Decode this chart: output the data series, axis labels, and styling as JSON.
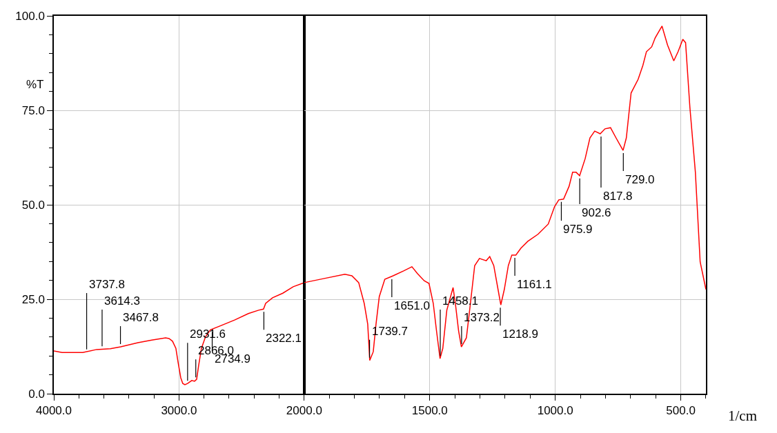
{
  "chart_data": [
    {
      "type": "line",
      "ylabel": "%T",
      "xlim": [
        4000,
        2000
      ],
      "xticks": [
        {
          "value": 4000,
          "label": "4000.0"
        },
        {
          "value": 3000,
          "label": "3000.0"
        },
        {
          "value": 2000,
          "label": "2000.0"
        }
      ],
      "ylim": [
        0,
        100
      ],
      "yticks": [
        {
          "value": 0,
          "label": "0.0"
        },
        {
          "value": 25,
          "label": "25.0"
        },
        {
          "value": 50,
          "label": "50.0"
        },
        {
          "value": 75,
          "label": "75.0"
        },
        {
          "value": 100,
          "label": "100.0"
        }
      ],
      "grid": true,
      "marker": "none",
      "series": [
        {
          "color": "#ff0000",
          "x": [
            4000,
            3934,
            3769,
            3658,
            3548,
            3466,
            3328,
            3218,
            3107,
            3080,
            3052,
            3025,
            3008,
            2986,
            2970,
            2953,
            2931,
            2898,
            2876,
            2859,
            2843,
            2821,
            2788,
            2749,
            2667,
            2556,
            2446,
            2364,
            2325,
            2308,
            2253,
            2171,
            2088,
            2000
          ],
          "values": [
            11.3,
            10.9,
            10.9,
            11.7,
            11.9,
            12.4,
            13.5,
            14.2,
            14.8,
            14.6,
            13.9,
            12.0,
            8.4,
            4.2,
            2.7,
            2.4,
            2.7,
            3.5,
            3.3,
            3.8,
            7.5,
            12.0,
            15.1,
            16.9,
            18.0,
            19.5,
            21.2,
            22.1,
            22.4,
            23.9,
            25.4,
            26.6,
            28.3,
            29.4
          ]
        }
      ],
      "annotations": [
        {
          "text": "3737.8",
          "x": 3737.8,
          "y": 11.0
        },
        {
          "text": "3614.3",
          "x": 3614.3,
          "y": 11.8
        },
        {
          "text": "3467.8",
          "x": 3467.8,
          "y": 12.4
        },
        {
          "text": "2931.6",
          "x": 2931.6,
          "y": 2.7
        },
        {
          "text": "2866.0",
          "x": 2866.0,
          "y": 3.6
        },
        {
          "text": "2734.9",
          "x": 2734.9,
          "y": 17.0
        },
        {
          "text": "2322.1",
          "x": 2322.1,
          "y": 22.4
        }
      ]
    },
    {
      "type": "line",
      "xlabel": "1/cm",
      "xlim": [
        2000,
        400
      ],
      "xticks": [
        {
          "value": 2000,
          "label": null
        },
        {
          "value": 1500,
          "label": "1500.0"
        },
        {
          "value": 1000,
          "label": "1000.0"
        },
        {
          "value": 500,
          "label": "500.0"
        }
      ],
      "ylim": [
        0,
        100
      ],
      "yticks": [
        0,
        25,
        50,
        75,
        100
      ],
      "tick_labels": "x",
      "grid": true,
      "marker": "none",
      "series": [
        {
          "color": "#ff0000",
          "x": [
            2000,
            1920,
            1838,
            1810,
            1783,
            1761,
            1747,
            1739,
            1725,
            1714,
            1701,
            1679,
            1646,
            1604,
            1571,
            1549,
            1522,
            1503,
            1486,
            1473,
            1459,
            1448,
            1432,
            1407,
            1398,
            1385,
            1374,
            1354,
            1338,
            1321,
            1302,
            1275,
            1261,
            1245,
            1228,
            1217,
            1203,
            1187,
            1173,
            1157,
            1137,
            1110,
            1069,
            1028,
            1003,
            986,
            967,
            945,
            931,
            917,
            903,
            881,
            862,
            843,
            821,
            802,
            780,
            758,
            730,
            717,
            698,
            670,
            651,
            637,
            616,
            602,
            575,
            553,
            528,
            511,
            492,
            481,
            464,
            442,
            423,
            400
          ],
          "values": [
            29.4,
            30.5,
            31.6,
            31.2,
            29.4,
            23.9,
            18.4,
            8.8,
            11.1,
            18.4,
            25.7,
            30.3,
            31.2,
            32.5,
            33.6,
            31.8,
            29.9,
            29.2,
            23.9,
            16.6,
            9.3,
            12.0,
            22.1,
            28.1,
            23.9,
            16.6,
            12.4,
            14.8,
            23.9,
            33.9,
            35.8,
            35.2,
            36.3,
            33.9,
            27.6,
            23.5,
            27.6,
            33.9,
            36.7,
            36.7,
            38.5,
            40.3,
            42.2,
            44.9,
            49.5,
            51.3,
            51.5,
            54.9,
            58.6,
            58.6,
            57.7,
            62.2,
            67.7,
            69.5,
            68.8,
            70.1,
            70.4,
            67.7,
            64.4,
            67.7,
            79.6,
            83.2,
            86.9,
            90.5,
            91.8,
            94.2,
            97.3,
            92.3,
            88.1,
            90.5,
            93.8,
            92.9,
            75.9,
            58.6,
            34.9,
            27.6
          ]
        }
      ],
      "annotations": [
        {
          "text": "1739.7",
          "x": 1739.7,
          "y": 8.8
        },
        {
          "text": "1651.0",
          "x": 1651.0,
          "y": 31.0
        },
        {
          "text": "1458.1",
          "x": 1458.1,
          "y": 9.3
        },
        {
          "text": "1373.2",
          "x": 1373.2,
          "y": 12.4
        },
        {
          "text": "1218.9",
          "x": 1218.9,
          "y": 23.5
        },
        {
          "text": "1161.1",
          "x": 1161.1,
          "y": 36.7
        },
        {
          "text": "975.9",
          "x": 975.9,
          "y": 51.5
        },
        {
          "text": "902.6",
          "x": 902.6,
          "y": 57.7
        },
        {
          "text": "817.8",
          "x": 817.8,
          "y": 68.8
        },
        {
          "text": "729.0",
          "x": 729.0,
          "y": 64.4
        }
      ]
    }
  ]
}
